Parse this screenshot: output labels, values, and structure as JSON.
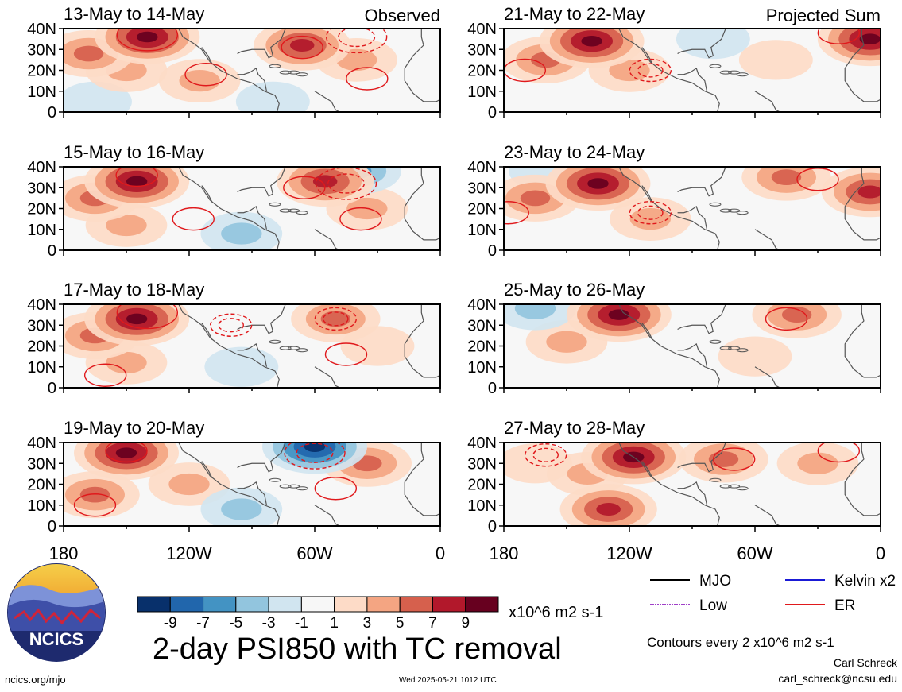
{
  "chart_data": {
    "type": "heatmap",
    "variable": "2-day PSI850 with TC removal",
    "units": "x10^6 m2 s-1",
    "columns": [
      {
        "heading": "Observed"
      },
      {
        "heading": "Projected Sum"
      }
    ],
    "x_ticks": [
      "180",
      "120W",
      "60W",
      "0"
    ],
    "y_ticks": [
      "40N",
      "30N",
      "20N",
      "10N",
      "0"
    ],
    "xlim": [
      -180,
      0
    ],
    "ylim": [
      0,
      40
    ],
    "panels": [
      {
        "title": "13-May to 14-May",
        "column": 0,
        "anomalies": [
          {
            "lon": -140,
            "lat": 36,
            "value": 9
          },
          {
            "lon": -168,
            "lat": 28,
            "value": 5
          },
          {
            "lon": -66,
            "lat": 32,
            "value": 7
          },
          {
            "lon": -40,
            "lat": 25,
            "value": 3
          },
          {
            "lon": -115,
            "lat": 15,
            "value": 3
          },
          {
            "lon": -150,
            "lat": 20,
            "value": 3
          },
          {
            "lon": -165,
            "lat": 5,
            "value": -1
          },
          {
            "lon": -80,
            "lat": 5,
            "value": -1
          }
        ],
        "contours": [
          {
            "lon": -140,
            "lat": 37,
            "level": 4,
            "style": "solid"
          },
          {
            "lon": -112,
            "lat": 18,
            "level": 2,
            "style": "solid"
          },
          {
            "lon": -35,
            "lat": 16,
            "level": 2,
            "style": "solid"
          },
          {
            "lon": -66,
            "lat": 31,
            "level": 2,
            "style": "solid"
          },
          {
            "lon": -40,
            "lat": 36,
            "level": -4,
            "style": "dashed"
          }
        ]
      },
      {
        "title": "15-May to 16-May",
        "column": 0,
        "anomalies": [
          {
            "lon": -145,
            "lat": 33,
            "value": 9
          },
          {
            "lon": -165,
            "lat": 25,
            "value": 5
          },
          {
            "lon": -55,
            "lat": 33,
            "value": 7
          },
          {
            "lon": -35,
            "lat": 20,
            "value": 3
          },
          {
            "lon": -150,
            "lat": 12,
            "value": 3
          },
          {
            "lon": -95,
            "lat": 8,
            "value": -3
          },
          {
            "lon": -40,
            "lat": 38,
            "value": -5
          }
        ],
        "contours": [
          {
            "lon": -145,
            "lat": 36,
            "level": 2,
            "style": "solid"
          },
          {
            "lon": -118,
            "lat": 15,
            "level": 2,
            "style": "solid"
          },
          {
            "lon": -38,
            "lat": 15,
            "level": 2,
            "style": "solid"
          },
          {
            "lon": -65,
            "lat": 30,
            "level": 2,
            "style": "solid"
          },
          {
            "lon": -45,
            "lat": 32,
            "level": -4,
            "style": "dashed"
          }
        ]
      },
      {
        "title": "17-May to 18-May",
        "column": 0,
        "anomalies": [
          {
            "lon": -145,
            "lat": 33,
            "value": 9
          },
          {
            "lon": -165,
            "lat": 25,
            "value": 5
          },
          {
            "lon": -50,
            "lat": 33,
            "value": 5
          },
          {
            "lon": -150,
            "lat": 12,
            "value": 3
          },
          {
            "lon": -30,
            "lat": 20,
            "value": 1
          },
          {
            "lon": -95,
            "lat": 10,
            "value": -1
          }
        ],
        "contours": [
          {
            "lon": -140,
            "lat": 36,
            "level": 4,
            "style": "solid"
          },
          {
            "lon": -160,
            "lat": 6,
            "level": 2,
            "style": "solid"
          },
          {
            "lon": -45,
            "lat": 16,
            "level": 2,
            "style": "solid"
          },
          {
            "lon": -100,
            "lat": 30,
            "level": -2,
            "style": "dashed"
          },
          {
            "lon": -50,
            "lat": 33,
            "level": -2,
            "style": "dashed"
          }
        ]
      },
      {
        "title": "19-May to 20-May",
        "column": 0,
        "anomalies": [
          {
            "lon": -150,
            "lat": 35,
            "value": 9
          },
          {
            "lon": -165,
            "lat": 15,
            "value": 5
          },
          {
            "lon": -35,
            "lat": 30,
            "value": 5
          },
          {
            "lon": -120,
            "lat": 20,
            "value": 3
          },
          {
            "lon": -95,
            "lat": 8,
            "value": -3
          },
          {
            "lon": -60,
            "lat": 38,
            "value": -9
          }
        ],
        "contours": [
          {
            "lon": -150,
            "lat": 36,
            "level": 2,
            "style": "solid"
          },
          {
            "lon": -165,
            "lat": 10,
            "level": 2,
            "style": "solid"
          },
          {
            "lon": -50,
            "lat": 18,
            "level": 2,
            "style": "solid"
          },
          {
            "lon": -60,
            "lat": 35,
            "level": -4,
            "style": "dashed"
          }
        ]
      },
      {
        "title": "21-May to 22-May",
        "column": 1,
        "anomalies": [
          {
            "lon": -138,
            "lat": 34,
            "value": 9
          },
          {
            "lon": -160,
            "lat": 25,
            "value": 5
          },
          {
            "lon": -120,
            "lat": 20,
            "value": 3
          },
          {
            "lon": -5,
            "lat": 35,
            "value": 9
          },
          {
            "lon": -50,
            "lat": 25,
            "value": 1
          },
          {
            "lon": -80,
            "lat": 35,
            "value": -1
          }
        ],
        "contours": [
          {
            "lon": -170,
            "lat": 20,
            "level": 2,
            "style": "solid"
          },
          {
            "lon": -20,
            "lat": 38,
            "level": 2,
            "style": "solid"
          },
          {
            "lon": -110,
            "lat": 20,
            "level": -2,
            "style": "dashed"
          }
        ]
      },
      {
        "title": "23-May to 24-May",
        "column": 1,
        "anomalies": [
          {
            "lon": -135,
            "lat": 32,
            "value": 9
          },
          {
            "lon": -165,
            "lat": 25,
            "value": 5
          },
          {
            "lon": -45,
            "lat": 35,
            "value": 5
          },
          {
            "lon": -5,
            "lat": 28,
            "value": 7
          },
          {
            "lon": -110,
            "lat": 15,
            "value": 3
          },
          {
            "lon": -160,
            "lat": 38,
            "value": -1
          }
        ],
        "contours": [
          {
            "lon": -178,
            "lat": 18,
            "level": 2,
            "style": "solid"
          },
          {
            "lon": -30,
            "lat": 34,
            "level": 2,
            "style": "solid"
          },
          {
            "lon": -110,
            "lat": 18,
            "level": -2,
            "style": "dashed"
          }
        ]
      },
      {
        "title": "25-May to 26-May",
        "column": 1,
        "anomalies": [
          {
            "lon": -125,
            "lat": 35,
            "value": 9
          },
          {
            "lon": -150,
            "lat": 22,
            "value": 3
          },
          {
            "lon": -40,
            "lat": 35,
            "value": 5
          },
          {
            "lon": -165,
            "lat": 38,
            "value": -3
          },
          {
            "lon": -60,
            "lat": 15,
            "value": 1
          }
        ],
        "contours": [
          {
            "lon": -45,
            "lat": 33,
            "level": 2,
            "style": "solid"
          }
        ]
      },
      {
        "title": "27-May to 28-May",
        "column": 1,
        "anomalies": [
          {
            "lon": -118,
            "lat": 33,
            "value": 9
          },
          {
            "lon": -75,
            "lat": 32,
            "value": 5
          },
          {
            "lon": -140,
            "lat": 25,
            "value": 3
          },
          {
            "lon": -30,
            "lat": 30,
            "value": 3
          },
          {
            "lon": -130,
            "lat": 8,
            "value": 7
          },
          {
            "lon": -165,
            "lat": 30,
            "value": 1
          }
        ],
        "contours": [
          {
            "lon": -70,
            "lat": 32,
            "level": 2,
            "style": "solid"
          },
          {
            "lon": -20,
            "lat": 36,
            "level": 2,
            "style": "solid"
          },
          {
            "lon": -160,
            "lat": 34,
            "level": -2,
            "style": "dashed"
          }
        ]
      }
    ],
    "colorbar": {
      "labels": [
        "-9",
        "-7",
        "-5",
        "-3",
        "-1",
        "1",
        "3",
        "5",
        "7",
        "9"
      ],
      "colors": [
        "#08306b",
        "#2166ac",
        "#4393c3",
        "#92c5de",
        "#d1e5f0",
        "#f7f7f7",
        "#fddbc7",
        "#f4a582",
        "#d6604d",
        "#b2182b",
        "#67001f"
      ]
    },
    "legend": [
      {
        "name": "MJO",
        "color": "#000000"
      },
      {
        "name": "Kelvin x2",
        "color": "#1a1ad6"
      },
      {
        "name": "Low",
        "color": "#a040c8"
      },
      {
        "name": "ER",
        "color": "#e0191c"
      }
    ],
    "title": "2-day PSI850 with TC removal",
    "contour_note": "Contours every 2 x10^6 m2 s-1"
  },
  "footer": {
    "author": "Carl Schreck",
    "email": "carl_schreck@ncsu.edu",
    "site": "ncics.org/mjo",
    "timestamp": "Wed 2025-05-21 1012 UTC",
    "logo_text": "NCICS"
  }
}
